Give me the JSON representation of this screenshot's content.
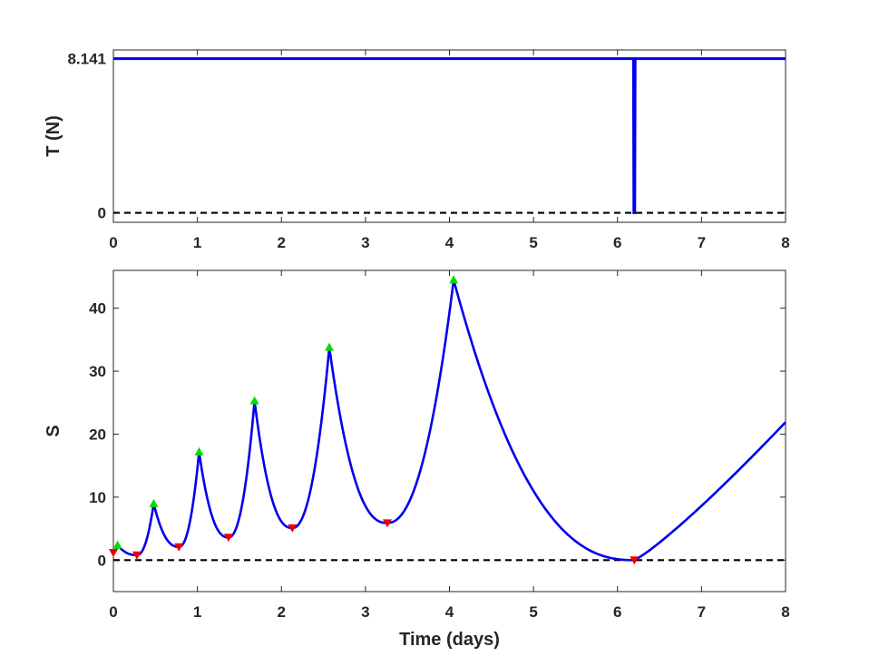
{
  "colors": {
    "line": "#0000ee",
    "maxima": "#00dd00",
    "minima": "#ee0000",
    "reference": "#000000",
    "axis": "#262626"
  },
  "chart_data": [
    {
      "type": "line",
      "id": "thrust",
      "ylabel": "T (N)",
      "xlabel": "",
      "xlim": [
        0,
        8
      ],
      "ylim": [
        -0.5,
        8.6
      ],
      "xticks": [
        "0",
        "1",
        "2",
        "3",
        "4",
        "5",
        "6",
        "7",
        "8"
      ],
      "yticks": [
        {
          "value": 0,
          "label": "0"
        },
        {
          "value": 8.141,
          "label": "8.141"
        }
      ],
      "grid": false,
      "series": [
        {
          "x": [
            0,
            6.19,
            6.195,
            6.205,
            6.21,
            8
          ],
          "y": [
            8.141,
            8.141,
            0,
            0,
            8.141,
            8.141
          ]
        }
      ],
      "reference_line": {
        "y": 0,
        "style": "dashed"
      }
    },
    {
      "type": "line",
      "id": "S",
      "ylabel": "S",
      "xlabel": "Time (days)",
      "xlim": [
        0,
        8
      ],
      "ylim": [
        -5,
        46
      ],
      "xticks": [
        "0",
        "1",
        "2",
        "3",
        "4",
        "5",
        "6",
        "7",
        "8"
      ],
      "yticks": [
        {
          "value": 0,
          "label": "0"
        },
        {
          "value": 10,
          "label": "10"
        },
        {
          "value": 20,
          "label": "20"
        },
        {
          "value": 30,
          "label": "30"
        },
        {
          "value": 40,
          "label": "40"
        }
      ],
      "grid": false,
      "maxima": [
        {
          "x": 0.05,
          "y": 2.4
        },
        {
          "x": 0.48,
          "y": 9.0
        },
        {
          "x": 1.02,
          "y": 17.2
        },
        {
          "x": 1.68,
          "y": 25.3
        },
        {
          "x": 2.57,
          "y": 33.8
        },
        {
          "x": 4.05,
          "y": 44.5
        }
      ],
      "minima": [
        {
          "x": 0.0,
          "y": 1.2
        },
        {
          "x": 0.28,
          "y": 0.8
        },
        {
          "x": 0.78,
          "y": 2.1
        },
        {
          "x": 1.37,
          "y": 3.6
        },
        {
          "x": 2.13,
          "y": 5.1
        },
        {
          "x": 3.26,
          "y": 5.9
        },
        {
          "x": 6.2,
          "y": 0.0
        }
      ],
      "after_last_min": {
        "x": 8.0,
        "y": 21.9
      },
      "reference_line": {
        "y": 0,
        "style": "dashed"
      }
    }
  ]
}
